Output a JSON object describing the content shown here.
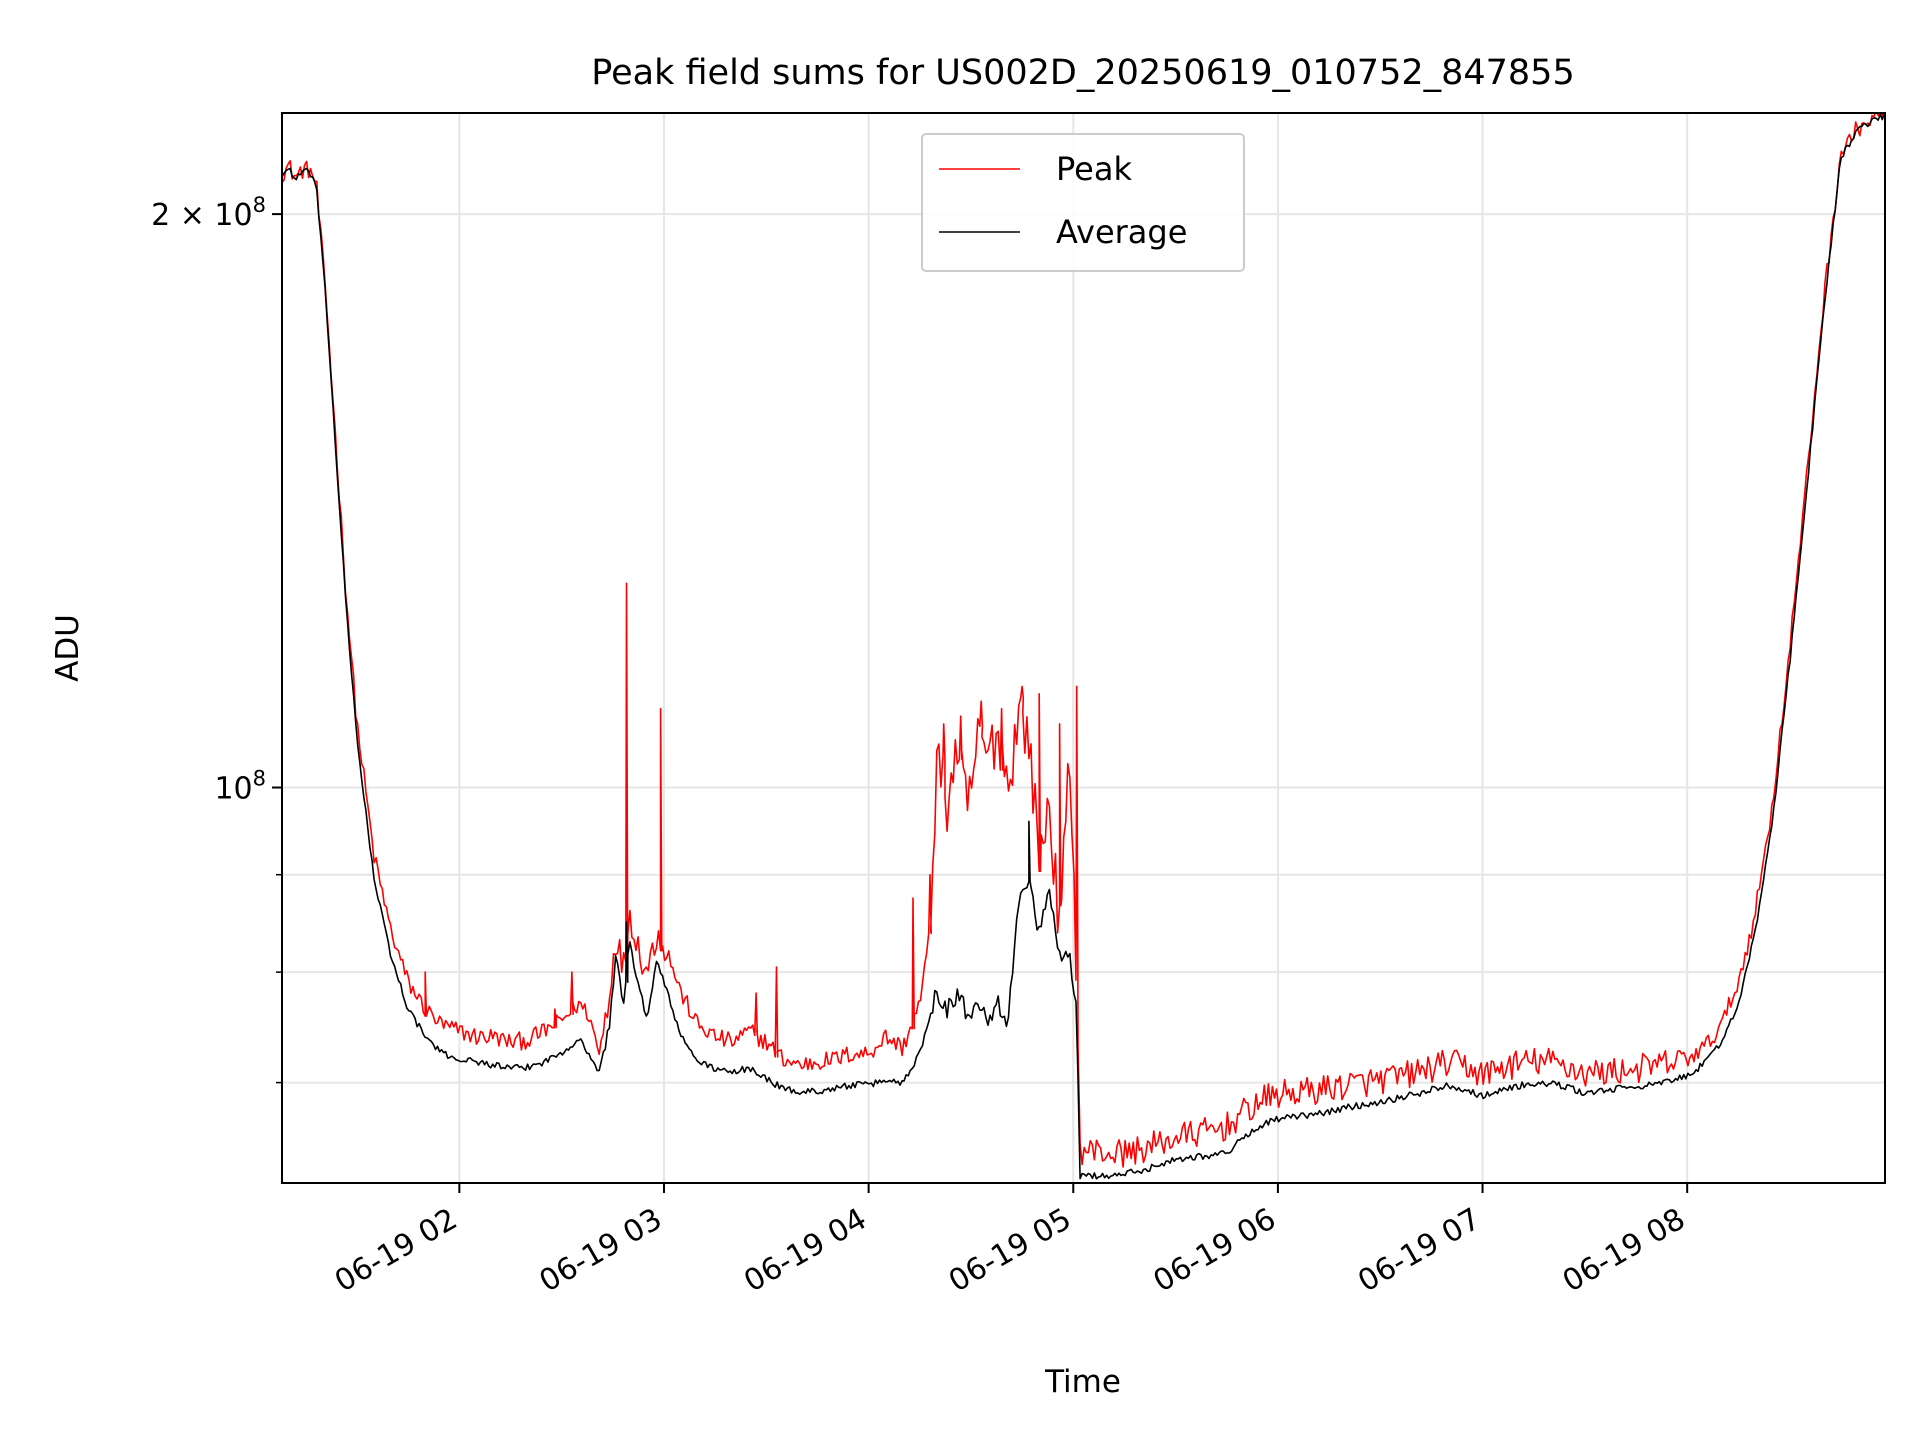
{
  "chart_data": {
    "type": "line",
    "title": "Peak field sums for US002D_20250619_010752_847855",
    "xlabel": "Time",
    "ylabel": "ADU",
    "yscale": "log",
    "grid": true,
    "legend_position": "top-center",
    "x_range": [
      "06-19 01:08",
      "06-19 08:58"
    ],
    "y_range": [
      62000000,
      226000000
    ],
    "x_ticks": [
      {
        "x": "06-19 02:00",
        "label": "06-19 02"
      },
      {
        "x": "06-19 03:00",
        "label": "06-19 03"
      },
      {
        "x": "06-19 04:00",
        "label": "06-19 04"
      },
      {
        "x": "06-19 05:00",
        "label": "06-19 05"
      },
      {
        "x": "06-19 06:00",
        "label": "06-19 06"
      },
      {
        "x": "06-19 07:00",
        "label": "06-19 07"
      },
      {
        "x": "06-19 08:00",
        "label": "06-19 08"
      }
    ],
    "y_major_ticks": [
      {
        "y": 100000000,
        "base": "10",
        "exp": "8"
      },
      {
        "y": 200000000,
        "base": "2 × 10",
        "exp": "8"
      }
    ],
    "y_minor_ticks": [
      70000000,
      80000000,
      90000000
    ],
    "series": [
      {
        "name": "Peak",
        "color": "#ff0000",
        "points": [
          [
            "06-19 01:08",
            210000000
          ],
          [
            "06-19 01:10",
            212000000
          ],
          [
            "06-19 01:12",
            209000000
          ],
          [
            "06-19 01:14",
            211000000
          ],
          [
            "06-19 01:16",
            211000000
          ],
          [
            "06-19 01:18",
            208000000
          ],
          [
            "06-19 01:21",
            180000000
          ],
          [
            "06-19 01:24",
            150000000
          ],
          [
            "06-19 01:27",
            125000000
          ],
          [
            "06-19 01:30",
            108000000
          ],
          [
            "06-19 01:35",
            92000000
          ],
          [
            "06-19 01:40",
            84000000
          ],
          [
            "06-19 01:45",
            79000000
          ],
          [
            "06-19 01:50",
            76500000
          ],
          [
            "06-19 01:55",
            75000000
          ],
          [
            "06-19 02:00",
            74500000
          ],
          [
            "06-19 02:05",
            74000000
          ],
          [
            "06-19 02:10",
            74000000
          ],
          [
            "06-19 02:15",
            73500000
          ],
          [
            "06-19 02:20",
            73700000
          ],
          [
            "06-19 02:25",
            74500000
          ],
          [
            "06-19 02:30",
            75500000
          ],
          [
            "06-19 02:35",
            77000000
          ],
          [
            "06-19 02:38",
            76000000
          ],
          [
            "06-19 02:41",
            72500000
          ],
          [
            "06-19 02:44",
            78000000
          ],
          [
            "06-19 02:46",
            84000000
          ],
          [
            "06-19 02:48",
            80000000
          ],
          [
            "06-19 02:50",
            86000000
          ],
          [
            "06-19 02:52",
            83000000
          ],
          [
            "06-19 02:55",
            80000000
          ],
          [
            "06-19 02:58",
            84000000
          ],
          [
            "06-19 03:01",
            82000000
          ],
          [
            "06-19 03:05",
            78000000
          ],
          [
            "06-19 03:10",
            75000000
          ],
          [
            "06-19 03:15",
            74000000
          ],
          [
            "06-19 03:20",
            73500000
          ],
          [
            "06-19 03:25",
            74500000
          ],
          [
            "06-19 03:30",
            73500000
          ],
          [
            "06-19 03:35",
            72000000
          ],
          [
            "06-19 03:40",
            71500000
          ],
          [
            "06-19 03:45",
            71800000
          ],
          [
            "06-19 03:50",
            72000000
          ],
          [
            "06-19 03:55",
            72500000
          ],
          [
            "06-19 04:00",
            72500000
          ],
          [
            "06-19 04:05",
            74000000
          ],
          [
            "06-19 04:10",
            73000000
          ],
          [
            "06-19 04:15",
            77000000
          ],
          [
            "06-19 04:18",
            84000000
          ],
          [
            "06-19 04:20",
            104000000
          ],
          [
            "06-19 04:23",
            98000000
          ],
          [
            "06-19 04:26",
            105000000
          ],
          [
            "06-19 04:29",
            97000000
          ],
          [
            "06-19 04:32",
            106000000
          ],
          [
            "06-19 04:35",
            104000000
          ],
          [
            "06-19 04:38",
            107000000
          ],
          [
            "06-19 04:41",
            100000000
          ],
          [
            "06-19 04:44",
            110000000
          ],
          [
            "06-19 04:47",
            106000000
          ],
          [
            "06-19 04:50",
            92000000
          ],
          [
            "06-19 04:53",
            98000000
          ],
          [
            "06-19 04:56",
            84000000
          ],
          [
            "06-19 04:59",
            104000000
          ],
          [
            "06-19 05:01",
            80000000
          ],
          [
            "06-19 05:02",
            64500000
          ],
          [
            "06-19 05:05",
            64500000
          ],
          [
            "06-19 05:10",
            64300000
          ],
          [
            "06-19 05:15",
            64300000
          ],
          [
            "06-19 05:20",
            64600000
          ],
          [
            "06-19 05:25",
            65000000
          ],
          [
            "06-19 05:30",
            65500000
          ],
          [
            "06-19 05:35",
            65800000
          ],
          [
            "06-19 05:40",
            66000000
          ],
          [
            "06-19 05:45",
            66400000
          ],
          [
            "06-19 05:50",
            67500000
          ],
          [
            "06-19 05:55",
            68500000
          ],
          [
            "06-19 06:00",
            69000000
          ],
          [
            "06-19 06:10",
            69300000
          ],
          [
            "06-19 06:20",
            69800000
          ],
          [
            "06-19 06:30",
            70200000
          ],
          [
            "06-19 06:40",
            70800000
          ],
          [
            "06-19 06:50",
            71700000
          ],
          [
            "06-19 06:55",
            71400000
          ],
          [
            "06-19 07:00",
            70700000
          ],
          [
            "06-19 07:05",
            71200000
          ],
          [
            "06-19 07:10",
            71600000
          ],
          [
            "06-19 07:15",
            71800000
          ],
          [
            "06-19 07:20",
            71800000
          ],
          [
            "06-19 07:25",
            71400000
          ],
          [
            "06-19 07:30",
            70800000
          ],
          [
            "06-19 07:35",
            70900000
          ],
          [
            "06-19 07:40",
            71000000
          ],
          [
            "06-19 07:45",
            71200000
          ],
          [
            "06-19 07:50",
            71400000
          ],
          [
            "06-19 07:55",
            71700000
          ],
          [
            "06-19 08:00",
            72000000
          ],
          [
            "06-19 08:05",
            73000000
          ],
          [
            "06-19 08:10",
            75000000
          ],
          [
            "06-19 08:15",
            79000000
          ],
          [
            "06-19 08:20",
            86000000
          ],
          [
            "06-19 08:25",
            98000000
          ],
          [
            "06-19 08:30",
            118000000
          ],
          [
            "06-19 08:35",
            145000000
          ],
          [
            "06-19 08:40",
            180000000
          ],
          [
            "06-19 08:45",
            215000000
          ],
          [
            "06-19 08:50",
            222000000
          ],
          [
            "06-19 08:58",
            226000000
          ]
        ],
        "spikes": [
          [
            "06-19 01:50",
            80000000
          ],
          [
            "06-19 02:28",
            76500000
          ],
          [
            "06-19 02:33",
            80000000
          ],
          [
            "06-19 02:49",
            128000000
          ],
          [
            "06-19 02:59",
            110000000
          ],
          [
            "06-19 03:27",
            78000000
          ],
          [
            "06-19 03:33",
            80500000
          ],
          [
            "06-19 04:13",
            87500000
          ],
          [
            "06-19 04:18",
            90000000
          ],
          [
            "06-19 04:22",
            108000000
          ],
          [
            "06-19 04:27",
            109000000
          ],
          [
            "06-19 04:33",
            111000000
          ],
          [
            "06-19 04:39",
            110000000
          ],
          [
            "06-19 04:45",
            113000000
          ],
          [
            "06-19 04:50",
            112000000
          ],
          [
            "06-19 04:56",
            108000000
          ],
          [
            "06-19 05:01",
            113000000
          ]
        ]
      },
      {
        "name": "Average",
        "color": "#000000",
        "points": [
          [
            "06-19 01:08",
            209500000
          ],
          [
            "06-19 01:10",
            211500000
          ],
          [
            "06-19 01:12",
            208500000
          ],
          [
            "06-19 01:14",
            210500000
          ],
          [
            "06-19 01:16",
            210500000
          ],
          [
            "06-19 01:18",
            207500000
          ],
          [
            "06-19 01:21",
            179000000
          ],
          [
            "06-19 01:24",
            148000000
          ],
          [
            "06-19 01:27",
            123000000
          ],
          [
            "06-19 01:30",
            106000000
          ],
          [
            "06-19 01:35",
            89500000
          ],
          [
            "06-19 01:40",
            81500000
          ],
          [
            "06-19 01:45",
            76500000
          ],
          [
            "06-19 01:50",
            74000000
          ],
          [
            "06-19 01:55",
            72500000
          ],
          [
            "06-19 02:00",
            72000000
          ],
          [
            "06-19 02:05",
            71800000
          ],
          [
            "06-19 02:10",
            71500000
          ],
          [
            "06-19 02:15",
            71200000
          ],
          [
            "06-19 02:20",
            71300000
          ],
          [
            "06-19 02:25",
            71800000
          ],
          [
            "06-19 02:30",
            72600000
          ],
          [
            "06-19 02:35",
            73800000
          ],
          [
            "06-19 02:38",
            72500000
          ],
          [
            "06-19 02:41",
            70800000
          ],
          [
            "06-19 02:44",
            75000000
          ],
          [
            "06-19 02:46",
            82000000
          ],
          [
            "06-19 02:48",
            77000000
          ],
          [
            "06-19 02:50",
            83000000
          ],
          [
            "06-19 02:52",
            79000000
          ],
          [
            "06-19 02:55",
            76000000
          ],
          [
            "06-19 02:58",
            81000000
          ],
          [
            "06-19 03:01",
            78000000
          ],
          [
            "06-19 03:05",
            74000000
          ],
          [
            "06-19 03:10",
            71800000
          ],
          [
            "06-19 03:15",
            71200000
          ],
          [
            "06-19 03:20",
            70800000
          ],
          [
            "06-19 03:25",
            71300000
          ],
          [
            "06-19 03:30",
            70300000
          ],
          [
            "06-19 03:35",
            69500000
          ],
          [
            "06-19 03:40",
            69200000
          ],
          [
            "06-19 03:45",
            69300000
          ],
          [
            "06-19 03:50",
            69500000
          ],
          [
            "06-19 03:55",
            69800000
          ],
          [
            "06-19 04:00",
            69800000
          ],
          [
            "06-19 04:05",
            70200000
          ],
          [
            "06-19 04:10",
            70000000
          ],
          [
            "06-19 04:15",
            72500000
          ],
          [
            "06-19 04:18",
            76000000
          ],
          [
            "06-19 04:20",
            78500000
          ],
          [
            "06-19 04:23",
            76500000
          ],
          [
            "06-19 04:26",
            78000000
          ],
          [
            "06-19 04:29",
            76000000
          ],
          [
            "06-19 04:32",
            77500000
          ],
          [
            "06-19 04:35",
            76000000
          ],
          [
            "06-19 04:38",
            77000000
          ],
          [
            "06-19 04:41",
            75500000
          ],
          [
            "06-19 04:44",
            87000000
          ],
          [
            "06-19 04:47",
            90000000
          ],
          [
            "06-19 04:50",
            84000000
          ],
          [
            "06-19 04:53",
            88000000
          ],
          [
            "06-19 04:56",
            82000000
          ],
          [
            "06-19 04:59",
            81000000
          ],
          [
            "06-19 05:01",
            76000000
          ],
          [
            "06-19 05:02",
            62500000
          ],
          [
            "06-19 05:05",
            62600000
          ],
          [
            "06-19 05:10",
            62500000
          ],
          [
            "06-19 05:15",
            62700000
          ],
          [
            "06-19 05:20",
            62900000
          ],
          [
            "06-19 05:25",
            63400000
          ],
          [
            "06-19 05:30",
            63800000
          ],
          [
            "06-19 05:35",
            64000000
          ],
          [
            "06-19 05:40",
            64100000
          ],
          [
            "06-19 05:45",
            64300000
          ],
          [
            "06-19 05:50",
            65500000
          ],
          [
            "06-19 05:55",
            66500000
          ],
          [
            "06-19 06:00",
            67000000
          ],
          [
            "06-19 06:10",
            67300000
          ],
          [
            "06-19 06:20",
            67900000
          ],
          [
            "06-19 06:30",
            68400000
          ],
          [
            "06-19 06:40",
            69000000
          ],
          [
            "06-19 06:50",
            69800000
          ],
          [
            "06-19 06:55",
            69400000
          ],
          [
            "06-19 07:00",
            68900000
          ],
          [
            "06-19 07:05",
            69300000
          ],
          [
            "06-19 07:10",
            69700000
          ],
          [
            "06-19 07:15",
            69900000
          ],
          [
            "06-19 07:20",
            69900000
          ],
          [
            "06-19 07:25",
            69600000
          ],
          [
            "06-19 07:30",
            69100000
          ],
          [
            "06-19 07:35",
            69300000
          ],
          [
            "06-19 07:40",
            69500000
          ],
          [
            "06-19 07:45",
            69700000
          ],
          [
            "06-19 07:50",
            69800000
          ],
          [
            "06-19 07:55",
            70100000
          ],
          [
            "06-19 08:00",
            70600000
          ],
          [
            "06-19 08:05",
            71600000
          ],
          [
            "06-19 08:10",
            73500000
          ],
          [
            "06-19 08:15",
            77000000
          ],
          [
            "06-19 08:20",
            84000000
          ],
          [
            "06-19 08:25",
            96000000
          ],
          [
            "06-19 08:30",
            116000000
          ],
          [
            "06-19 08:35",
            143000000
          ],
          [
            "06-19 08:40",
            178000000
          ],
          [
            "06-19 08:45",
            214000000
          ],
          [
            "06-19 08:50",
            221500000
          ],
          [
            "06-19 08:58",
            225500000
          ]
        ],
        "spikes": [
          [
            "06-19 02:49",
            85000000
          ],
          [
            "06-19 04:47",
            96000000
          ]
        ]
      }
    ]
  }
}
